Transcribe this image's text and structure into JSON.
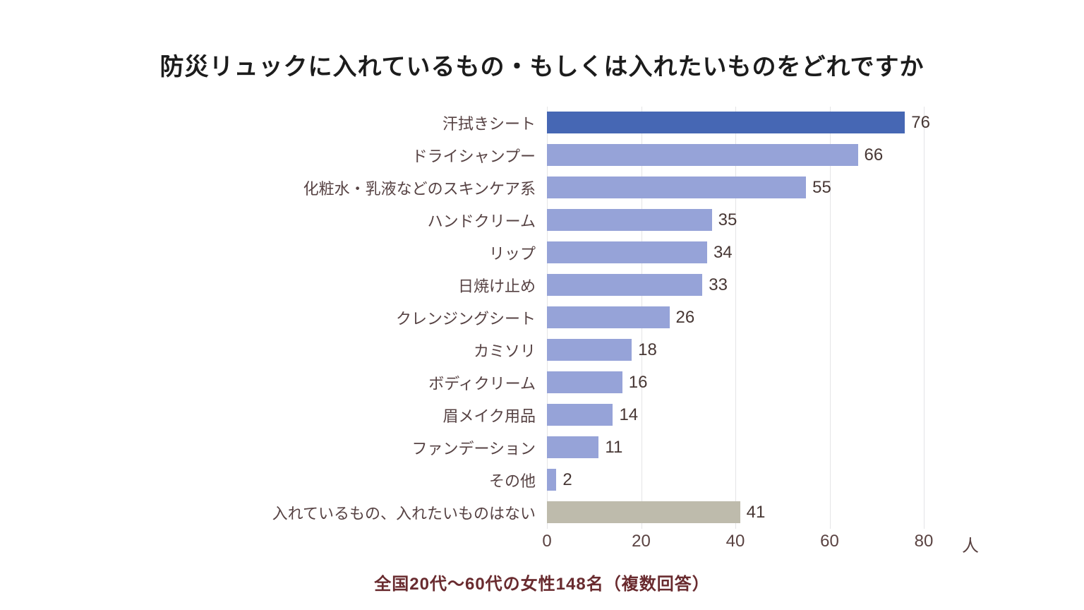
{
  "title": "防災リュックに入れているもの・もしくは入れたいものをどれですか",
  "footer": "全国20代～60代の女性148名（複数回答）",
  "chart_data": {
    "type": "bar",
    "orientation": "horizontal",
    "title": "防災リュックに入れているもの・もしくは入れたいものをどれですか",
    "source_note": "全国20代～60代の女性148名（複数回答）",
    "categories": [
      "汗拭きシート",
      "ドライシャンプー",
      "化粧水・乳液などのスキンケア系",
      "ハンドクリーム",
      "リップ",
      "日焼け止め",
      "クレンジングシート",
      "カミソリ",
      "ボディクリーム",
      "眉メイク用品",
      "ファンデーション",
      "その他",
      "入れているもの、入れたいものはない"
    ],
    "values": [
      76,
      66,
      55,
      35,
      34,
      33,
      26,
      18,
      16,
      14,
      11,
      2,
      41
    ],
    "bar_styles": [
      "highlight",
      "default",
      "default",
      "default",
      "default",
      "default",
      "default",
      "default",
      "default",
      "default",
      "default",
      "default",
      "none_option"
    ],
    "unit_label": "人",
    "x_ticks": [
      0,
      20,
      40,
      60,
      80
    ],
    "xlim": [
      0,
      80
    ],
    "grid": true,
    "legend": false,
    "colors": {
      "highlight": "#4667b4",
      "default": "#96a3d8",
      "none_option": "#bebbac",
      "gridline": "#e4e4e6",
      "category_text": "#564243",
      "value_text": "#473734",
      "axis_text": "#5a4342",
      "title_text": "#1c1c1c",
      "footer_text": "#692b2f"
    }
  }
}
